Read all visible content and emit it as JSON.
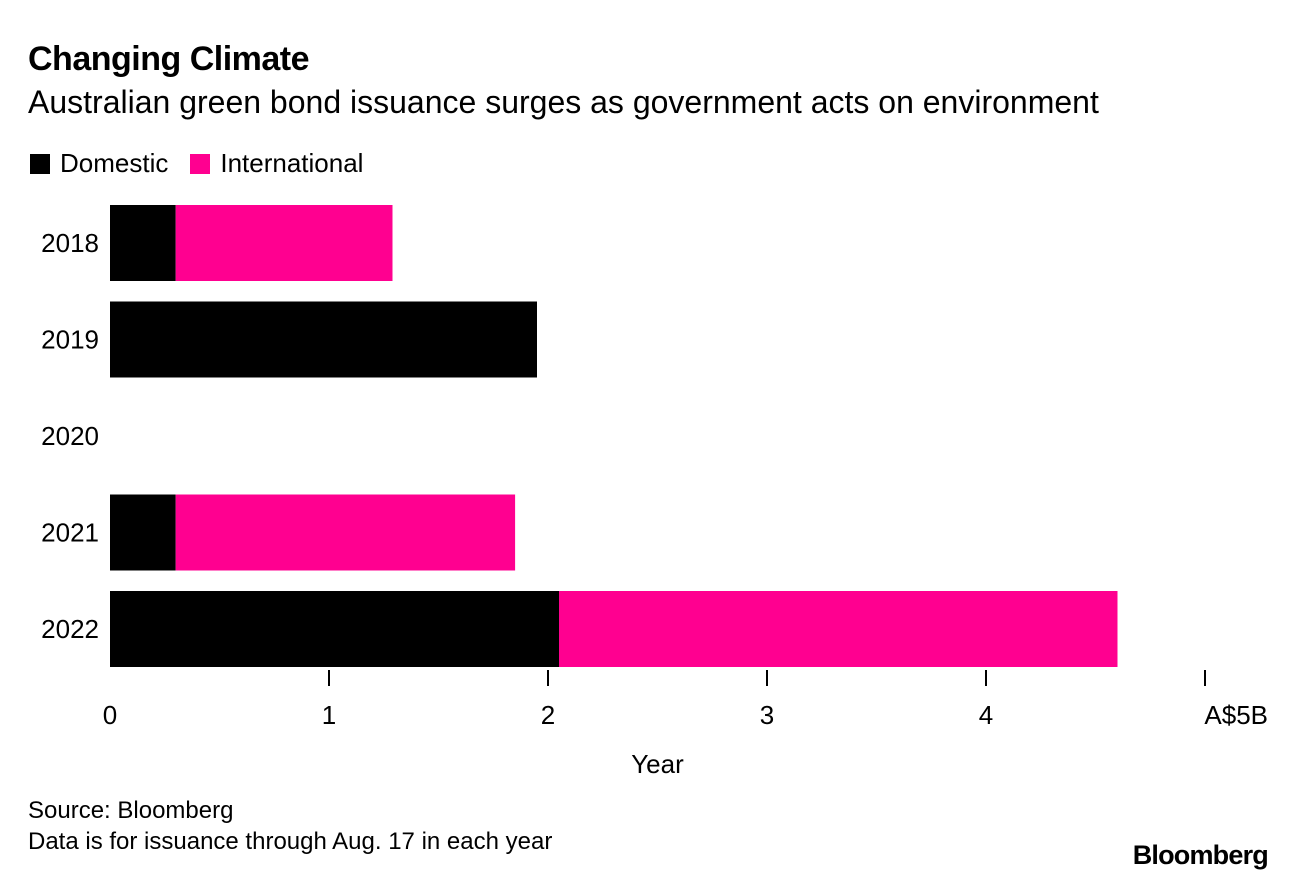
{
  "header": {
    "title": "Changing Climate",
    "subtitle": "Australian green bond issuance surges as government acts on environment"
  },
  "colors": {
    "domestic": "#000000",
    "international": "#ff0090"
  },
  "chart_data": {
    "type": "bar",
    "orientation": "horizontal",
    "stacked": true,
    "title": "Changing Climate",
    "subtitle": "Australian green bond issuance surges as government acts on environment",
    "categories": [
      "2018",
      "2019",
      "2020",
      "2021",
      "2022"
    ],
    "series": [
      {
        "name": "Domestic",
        "color": "#000000",
        "values": [
          0.3,
          1.95,
          0,
          0.3,
          2.05
        ]
      },
      {
        "name": "International",
        "color": "#ff0090",
        "values": [
          0.99,
          0,
          0,
          1.55,
          2.55
        ]
      }
    ],
    "xlim": [
      0,
      5
    ],
    "x_ticks": [
      0,
      1,
      2,
      3,
      4,
      5
    ],
    "x_tick_labels": [
      "0",
      "1",
      "2",
      "3",
      "4",
      "A$5B"
    ],
    "xlabel": "Year",
    "ylabel": "",
    "legend_position": "top-left",
    "grid": false
  },
  "footer": {
    "source": "Source: Bloomberg",
    "note": "Data is for issuance through Aug. 17 in each year",
    "brand": "Bloomberg"
  }
}
